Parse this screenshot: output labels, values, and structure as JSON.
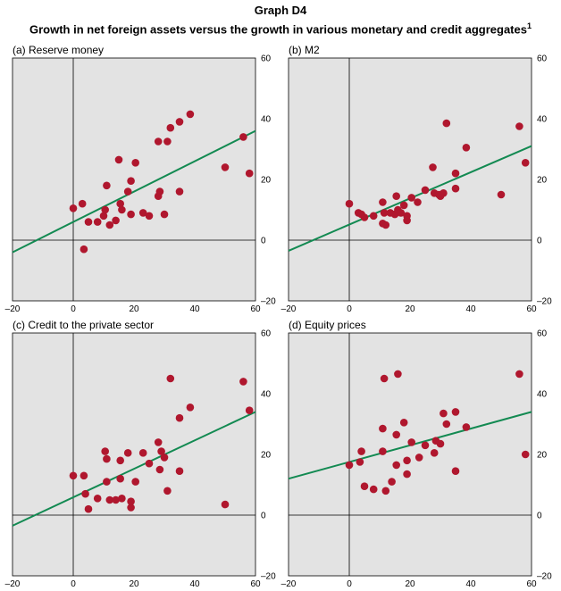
{
  "title": "Graph D4",
  "subtitle": "Growth in net foreign assets versus the growth in various monetary and credit aggregates",
  "subtitle_footnote": "1",
  "colors": {
    "panel_bg": "#e3e3e3",
    "dot": "#b0172e",
    "line": "#138a52",
    "axis": "#000000"
  },
  "chart_data": [
    {
      "type": "scatter",
      "title": "(a) Reserve money",
      "xlim": [
        -20,
        60
      ],
      "ylim": [
        -20,
        60
      ],
      "xticks": [
        "–20",
        "0",
        "20",
        "40",
        "60"
      ],
      "yticks": [
        "60",
        "40",
        "20",
        "0",
        "–20"
      ],
      "trendline": {
        "x1": -20,
        "y1": -4,
        "x2": 60,
        "y2": 36
      },
      "points": [
        {
          "x": 0,
          "y": 10.5
        },
        {
          "x": 3,
          "y": 12
        },
        {
          "x": 3.5,
          "y": -3
        },
        {
          "x": 5,
          "y": 6
        },
        {
          "x": 8,
          "y": 6
        },
        {
          "x": 10,
          "y": 8
        },
        {
          "x": 10.5,
          "y": 10
        },
        {
          "x": 11,
          "y": 18
        },
        {
          "x": 12,
          "y": 5
        },
        {
          "x": 14,
          "y": 6.5
        },
        {
          "x": 15,
          "y": 26.5
        },
        {
          "x": 15.5,
          "y": 12
        },
        {
          "x": 16,
          "y": 10
        },
        {
          "x": 18,
          "y": 16
        },
        {
          "x": 19,
          "y": 19.5
        },
        {
          "x": 19,
          "y": 8.5
        },
        {
          "x": 20.5,
          "y": 25.5
        },
        {
          "x": 23,
          "y": 9
        },
        {
          "x": 25,
          "y": 8
        },
        {
          "x": 28,
          "y": 32.5
        },
        {
          "x": 28,
          "y": 14.5
        },
        {
          "x": 28.5,
          "y": 16
        },
        {
          "x": 30,
          "y": 8.5
        },
        {
          "x": 31,
          "y": 32.5
        },
        {
          "x": 32,
          "y": 37
        },
        {
          "x": 35,
          "y": 39
        },
        {
          "x": 35,
          "y": 16
        },
        {
          "x": 38.5,
          "y": 41.5
        },
        {
          "x": 50,
          "y": 24
        },
        {
          "x": 56,
          "y": 34
        },
        {
          "x": 58,
          "y": 22
        }
      ]
    },
    {
      "type": "scatter",
      "title": "(b) M2",
      "xlim": [
        -20,
        60
      ],
      "ylim": [
        -20,
        60
      ],
      "xticks": [
        "–20",
        "0",
        "20",
        "40",
        "60"
      ],
      "yticks": [
        "60",
        "40",
        "20",
        "0",
        "–20"
      ],
      "trendline": {
        "x1": -20,
        "y1": -3.5,
        "x2": 60,
        "y2": 31
      },
      "points": [
        {
          "x": 0,
          "y": 12
        },
        {
          "x": 3,
          "y": 9
        },
        {
          "x": 4,
          "y": 8.5
        },
        {
          "x": 5,
          "y": 7.5
        },
        {
          "x": 8,
          "y": 8
        },
        {
          "x": 11,
          "y": 5.5
        },
        {
          "x": 11,
          "y": 12.5
        },
        {
          "x": 11.5,
          "y": 9
        },
        {
          "x": 12,
          "y": 5
        },
        {
          "x": 13.5,
          "y": 9
        },
        {
          "x": 15,
          "y": 8.5
        },
        {
          "x": 15.5,
          "y": 14.5
        },
        {
          "x": 16,
          "y": 10
        },
        {
          "x": 17,
          "y": 9
        },
        {
          "x": 18,
          "y": 11.5
        },
        {
          "x": 19,
          "y": 6.5
        },
        {
          "x": 19,
          "y": 8
        },
        {
          "x": 20.5,
          "y": 14
        },
        {
          "x": 22.5,
          "y": 12.5
        },
        {
          "x": 25,
          "y": 16.5
        },
        {
          "x": 27.5,
          "y": 24
        },
        {
          "x": 28,
          "y": 15.5
        },
        {
          "x": 29.5,
          "y": 15
        },
        {
          "x": 30,
          "y": 14.5
        },
        {
          "x": 31,
          "y": 15.5
        },
        {
          "x": 32,
          "y": 38.5
        },
        {
          "x": 35,
          "y": 22
        },
        {
          "x": 35,
          "y": 17
        },
        {
          "x": 38.5,
          "y": 30.5
        },
        {
          "x": 50,
          "y": 15
        },
        {
          "x": 56,
          "y": 37.5
        },
        {
          "x": 58,
          "y": 25.5
        }
      ]
    },
    {
      "type": "scatter",
      "title": "(c) Credit to the private sector",
      "xlim": [
        -20,
        60
      ],
      "ylim": [
        -20,
        60
      ],
      "xticks": [
        "–20",
        "0",
        "20",
        "40",
        "60"
      ],
      "yticks": [
        "60",
        "40",
        "20",
        "0",
        "–20"
      ],
      "trendline": {
        "x1": -20,
        "y1": -3.5,
        "x2": 60,
        "y2": 34
      },
      "points": [
        {
          "x": 0,
          "y": 13
        },
        {
          "x": 3.5,
          "y": 13
        },
        {
          "x": 4,
          "y": 7
        },
        {
          "x": 5,
          "y": 2
        },
        {
          "x": 8,
          "y": 5.5
        },
        {
          "x": 10.5,
          "y": 21
        },
        {
          "x": 11,
          "y": 18.5
        },
        {
          "x": 11,
          "y": 11
        },
        {
          "x": 12,
          "y": 5
        },
        {
          "x": 14,
          "y": 5
        },
        {
          "x": 15.5,
          "y": 12
        },
        {
          "x": 15.5,
          "y": 18
        },
        {
          "x": 16,
          "y": 5.5
        },
        {
          "x": 18,
          "y": 20.5
        },
        {
          "x": 19,
          "y": 2.5
        },
        {
          "x": 19,
          "y": 4.5
        },
        {
          "x": 20.5,
          "y": 11
        },
        {
          "x": 23,
          "y": 20.5
        },
        {
          "x": 25,
          "y": 17
        },
        {
          "x": 28,
          "y": 24
        },
        {
          "x": 28.5,
          "y": 15
        },
        {
          "x": 29,
          "y": 21
        },
        {
          "x": 30,
          "y": 19
        },
        {
          "x": 31,
          "y": 8
        },
        {
          "x": 32,
          "y": 45
        },
        {
          "x": 35,
          "y": 32
        },
        {
          "x": 35,
          "y": 14.5
        },
        {
          "x": 38.5,
          "y": 35.5
        },
        {
          "x": 50,
          "y": 3.5
        },
        {
          "x": 56,
          "y": 44
        },
        {
          "x": 58,
          "y": 34.5
        }
      ]
    },
    {
      "type": "scatter",
      "title": "(d) Equity prices",
      "xlim": [
        -20,
        60
      ],
      "ylim": [
        -20,
        60
      ],
      "xticks": [
        "–20",
        "0",
        "20",
        "40",
        "60"
      ],
      "yticks": [
        "60",
        "40",
        "20",
        "0",
        "–20"
      ],
      "trendline": {
        "x1": -20,
        "y1": 12,
        "x2": 60,
        "y2": 34
      },
      "points": [
        {
          "x": 0,
          "y": 16.5
        },
        {
          "x": 3.5,
          "y": 17.5
        },
        {
          "x": 4,
          "y": 21
        },
        {
          "x": 5,
          "y": 9.5
        },
        {
          "x": 8,
          "y": 8.5
        },
        {
          "x": 11,
          "y": 28.5
        },
        {
          "x": 11,
          "y": 21
        },
        {
          "x": 11.5,
          "y": 45
        },
        {
          "x": 12,
          "y": 8
        },
        {
          "x": 14,
          "y": 11
        },
        {
          "x": 15.5,
          "y": 26.5
        },
        {
          "x": 15.5,
          "y": 16.5
        },
        {
          "x": 16,
          "y": 46.5
        },
        {
          "x": 18,
          "y": 30.5
        },
        {
          "x": 19,
          "y": 13.5
        },
        {
          "x": 19,
          "y": 18
        },
        {
          "x": 20.5,
          "y": 24
        },
        {
          "x": 23,
          "y": 19
        },
        {
          "x": 25,
          "y": 23
        },
        {
          "x": 28,
          "y": 20.5
        },
        {
          "x": 28.5,
          "y": 24.5
        },
        {
          "x": 30,
          "y": 23.5
        },
        {
          "x": 31,
          "y": 33.5
        },
        {
          "x": 32,
          "y": 30
        },
        {
          "x": 35,
          "y": 34
        },
        {
          "x": 35,
          "y": 14.5
        },
        {
          "x": 38.5,
          "y": 29
        },
        {
          "x": 56,
          "y": 46.5
        },
        {
          "x": 58,
          "y": 20
        }
      ]
    }
  ]
}
